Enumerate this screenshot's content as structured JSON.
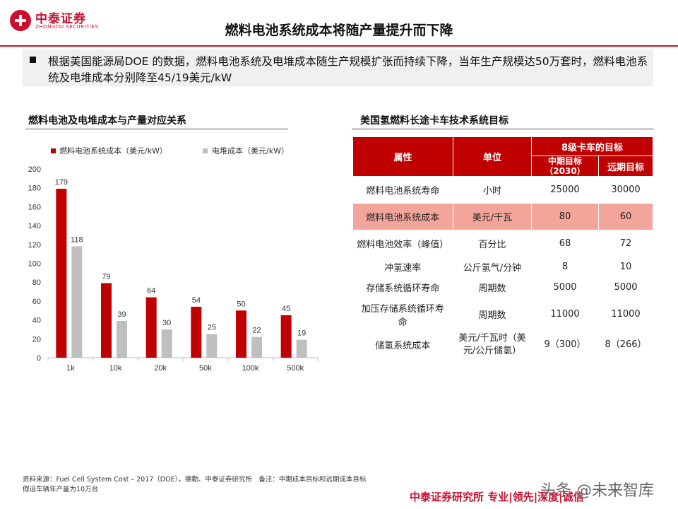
{
  "header": {
    "brand_cn": "中泰证券",
    "brand_en": "ZHONGTAI SECURITIES",
    "title": "燃料电池系统成本将随产量提升而下降",
    "accent": "#c8102e"
  },
  "summary": "根据美国能源局DOE 的数据，燃料电池系统及电堆成本随生产规模扩张而持续下降，当年生产规模达50万套时，燃料电池系统及电堆成本分别降至45/19美元/kW",
  "left_section_title": "燃料电池及电堆成本与产量对应关系",
  "right_section_title": "美国氢燃料长途卡车技术系统目标",
  "chart_data": {
    "type": "bar",
    "categories": [
      "1k",
      "10k",
      "20k",
      "50k",
      "100k",
      "500k"
    ],
    "series": [
      {
        "name": "燃料电池系统成本（美元/kW）",
        "color": "#c00000",
        "values": [
          179,
          79,
          64,
          54,
          50,
          45
        ]
      },
      {
        "name": "电堆成本（美元/kW）",
        "color": "#bfbfbf",
        "values": [
          118,
          39,
          30,
          25,
          22,
          19
        ]
      }
    ],
    "yticks": [
      "0",
      "20",
      "40",
      "60",
      "80",
      "100",
      "120",
      "140",
      "160",
      "180",
      "200"
    ],
    "ylim": [
      0,
      200
    ],
    "grid": false,
    "legend": "top"
  },
  "table": {
    "headers": {
      "attr": "属性",
      "unit": "单位",
      "group": "8级卡车的目标",
      "mid": "中期目标（2030）",
      "long": "远期目标"
    },
    "rows": [
      {
        "attr": "燃料电池系统寿命",
        "unit": "小时",
        "mid": "25000",
        "long": "30000"
      },
      {
        "attr": "燃料电池系统成本",
        "unit": "美元/千瓦",
        "mid": "80",
        "long": "60"
      },
      {
        "attr": "燃料电池效率（峰值）",
        "unit": "百分比",
        "mid": "68",
        "long": "72"
      },
      {
        "attr": "冲氢速率",
        "unit": "公斤氢气/分钟",
        "mid": "8",
        "long": "10"
      },
      {
        "attr": "存储系统循环寿命",
        "unit": "周期数",
        "mid": "5000",
        "long": "5000"
      },
      {
        "attr": "加压存储系统循环寿命",
        "unit": "周期数",
        "mid": "11000",
        "long": "11000"
      },
      {
        "attr": "储氢系统成本",
        "unit": "美元/千瓦时（美元/公斤储氢）",
        "mid": "9（300）",
        "long": "8（266）"
      }
    ]
  },
  "footer": {
    "source_line1": "资料来源：Fuel Cell System Cost – 2017（DOE），德勤、中泰证券研究所　备注：中期成本目标和远期成本目标",
    "source_line2": "假设车辆年产量为10万台",
    "org": "中泰证券研究所 专业|领先|深度|诚信",
    "watermark": "头条 @未来智库"
  }
}
